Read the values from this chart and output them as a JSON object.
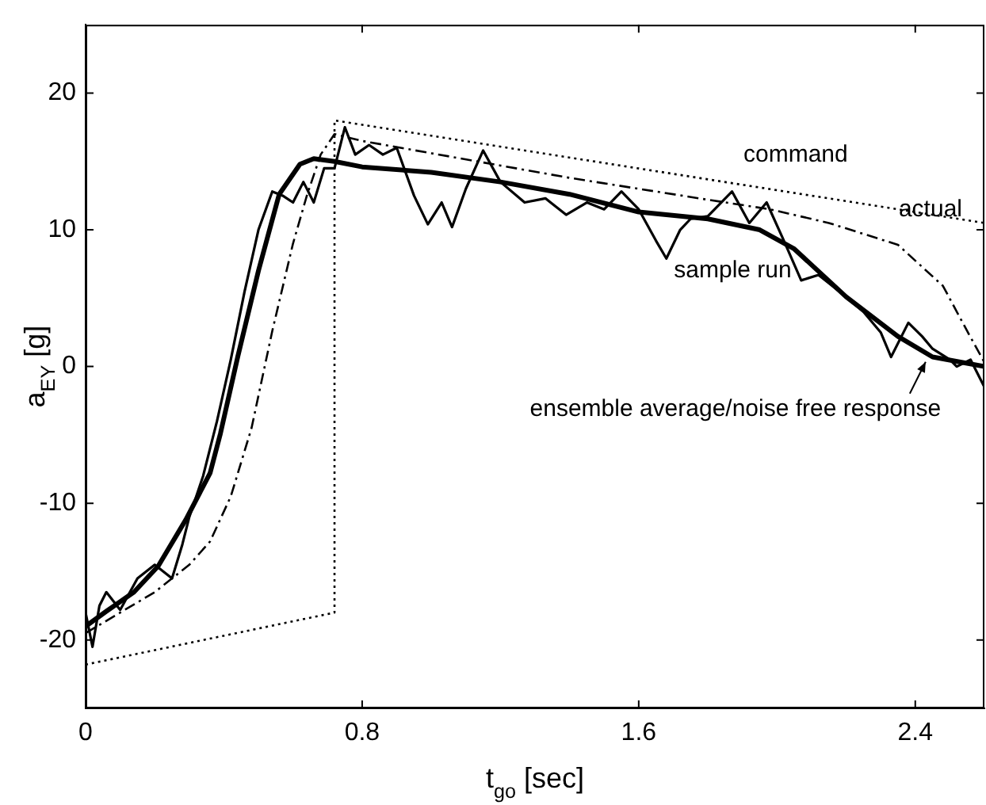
{
  "chart_data": {
    "type": "line",
    "xlabel": "t$_{go}$ [sec]",
    "ylabel": "a$_{EY}$ [g]",
    "xlim": [
      0,
      2.6
    ],
    "xticks": [
      0,
      0.8,
      1.6,
      2.4
    ],
    "ylim": [
      -25,
      25
    ],
    "yticks": [
      -20,
      -10,
      0,
      10,
      20
    ],
    "grid": false,
    "legend": false,
    "marker": "none",
    "series": [
      {
        "color": "#000000",
        "line_style": "dotted",
        "x": [
          0,
          0.72,
          0.72,
          2.6
        ],
        "values": [
          -21.8,
          -18,
          18,
          10.5
        ]
      },
      {
        "color": "#000000",
        "line_style": "dashed",
        "x": [
          0,
          0.1,
          0.2,
          0.3,
          0.36,
          0.42,
          0.48,
          0.54,
          0.6,
          0.64,
          0.68,
          0.72,
          0.8,
          1.0,
          1.2,
          1.4,
          1.6,
          1.8,
          1.98,
          2.15,
          2.35,
          2.48,
          2.55,
          2.6
        ],
        "values": [
          -19.5,
          -18,
          -16.5,
          -14.5,
          -12.8,
          -9.5,
          -4.5,
          2.6,
          9,
          12.5,
          15.5,
          17,
          16.5,
          15.6,
          14.7,
          13.8,
          13,
          12.2,
          11.5,
          10.5,
          8.9,
          5.9,
          2.6,
          0.3
        ]
      },
      {
        "color": "#000000",
        "line_style": "solid",
        "x": [
          0,
          0.02,
          0.04,
          0.06,
          0.1,
          0.15,
          0.2,
          0.25,
          0.28,
          0.3,
          0.34,
          0.38,
          0.42,
          0.46,
          0.5,
          0.54,
          0.57,
          0.6,
          0.63,
          0.66,
          0.69,
          0.72,
          0.75,
          0.78,
          0.82,
          0.86,
          0.9,
          0.95,
          0.99,
          1.03,
          1.06,
          1.1,
          1.15,
          1.2,
          1.27,
          1.33,
          1.39,
          1.45,
          1.5,
          1.55,
          1.6,
          1.65,
          1.68,
          1.72,
          1.75,
          1.8,
          1.87,
          1.92,
          1.97,
          2.02,
          2.07,
          2.12,
          2.18,
          2.25,
          2.3,
          2.33,
          2.38,
          2.42,
          2.45,
          2.5,
          2.52,
          2.56,
          2.6
        ],
        "values": [
          -18,
          -20.5,
          -17.5,
          -16.5,
          -17.8,
          -15.5,
          -14.5,
          -15.5,
          -13,
          -11,
          -8,
          -4,
          0.5,
          5.5,
          10,
          12.8,
          12.5,
          12,
          13.5,
          12,
          14.5,
          14.5,
          17.5,
          15.5,
          16.2,
          15.5,
          16,
          12.5,
          10.4,
          12,
          10.2,
          13,
          15.8,
          13.5,
          12,
          12.3,
          11.1,
          12,
          11.5,
          12.8,
          11.5,
          9.2,
          7.9,
          10,
          10.8,
          11,
          12.8,
          10.5,
          12,
          9.2,
          6.3,
          6.7,
          5.5,
          4,
          2.5,
          0.7,
          3.2,
          2.2,
          1.3,
          0.5,
          0,
          0.5,
          -1.5
        ]
      },
      {
        "color": "#000000",
        "line_style": "solid",
        "x": [
          0,
          0.06,
          0.14,
          0.21,
          0.29,
          0.36,
          0.39,
          0.44,
          0.5,
          0.56,
          0.62,
          0.66,
          0.72,
          0.8,
          1.0,
          1.2,
          1.4,
          1.6,
          1.8,
          1.95,
          2.05,
          2.2,
          2.35,
          2.45,
          2.6
        ],
        "values": [
          -19,
          -17.9,
          -16.5,
          -14.6,
          -11.2,
          -7.8,
          -4.9,
          0.7,
          7,
          12.6,
          14.8,
          15.2,
          15,
          14.6,
          14.2,
          13.5,
          12.6,
          11.3,
          10.8,
          10,
          8.6,
          5.1,
          2.2,
          0.7,
          0
        ]
      }
    ],
    "annotations": [
      "command",
      "actual",
      "sample run",
      {
        "text": "ensemble average/noise free response",
        "x": 2.43,
        "y": 0.8
      }
    ]
  }
}
